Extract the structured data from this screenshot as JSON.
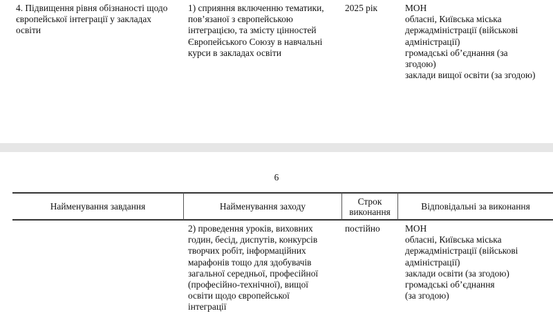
{
  "page1": {
    "task": [
      "4. Підвищення рівня обізнаності щодо",
      "європейської інтеграції у закладах",
      "освіти"
    ],
    "measure": [
      "1) сприяння включенню тематики,",
      "пов’язаної з європейською",
      "інтеграцією, та змісту цінностей",
      "Європейського Союзу в навчальні",
      "курси в закладах освіти"
    ],
    "term": [
      "2025 рік"
    ],
    "responsible": [
      "МОН",
      "обласні, Київська міська",
      "держадміністрації (військові",
      "адміністрації)",
      "громадські об’єднання (за",
      "згодою)",
      "заклади вищої освіти (за згодою)"
    ]
  },
  "page2": {
    "page_number": "6",
    "headers": {
      "task": "Найменування завдання",
      "measure": "Найменування заходу",
      "term": [
        "Строк",
        "виконання"
      ],
      "responsible": "Відповідальні за виконання"
    },
    "measure": [
      "2) проведення уроків, виховних",
      "годин, бесід, диспутів, конкурсів",
      "творчих робіт, інформаційних",
      "марафонів тощо для здобувачів",
      "загальної середньої, професійної",
      "(професійно-технічної), вищої",
      "освіти щодо європейської",
      "інтеграції"
    ],
    "term": [
      "постійно"
    ],
    "responsible": [
      "МОН",
      "обласні, Київська міська",
      "держадміністрації (військові",
      "адміністрації)",
      "заклади освіти (за згодою)",
      "громадські об’єднання",
      "(за згодою)"
    ]
  }
}
